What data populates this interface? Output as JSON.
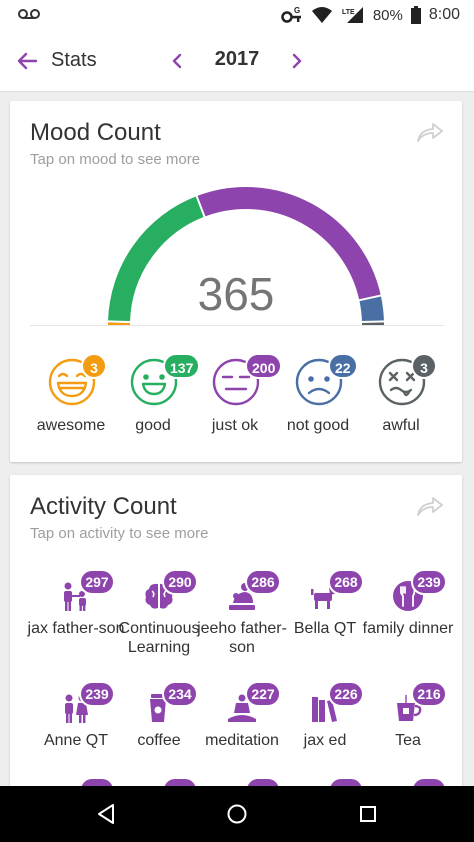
{
  "status_bar": {
    "battery": "80%",
    "time": "8:00",
    "network": "LTE",
    "icons": [
      "voicemail-icon",
      "vpn-key-icon",
      "wifi-icon",
      "signal-icon",
      "battery-icon"
    ]
  },
  "app_bar": {
    "title": "Stats",
    "year": "2017",
    "icons": [
      "arrow-left-icon",
      "chevron-left-icon",
      "chevron-right-icon"
    ]
  },
  "mood_card": {
    "title": "Mood Count",
    "subtitle": "Tap on mood to see more",
    "total": "365",
    "moods": [
      {
        "label": "awesome",
        "count": "3",
        "value": 3,
        "color": "#f39c12"
      },
      {
        "label": "good",
        "count": "137",
        "value": 137,
        "color": "#27ae60"
      },
      {
        "label": "just ok",
        "count": "200",
        "value": 200,
        "color": "#8e44ad"
      },
      {
        "label": "not good",
        "count": "22",
        "value": 22,
        "color": "#4a6fa5"
      },
      {
        "label": "awful",
        "count": "3",
        "value": 3,
        "color": "#5a6266"
      }
    ]
  },
  "activity_card": {
    "title": "Activity Count",
    "subtitle": "Tap on activity to see more",
    "accent": "#8e44ad",
    "activities": [
      {
        "label": "jax father-son",
        "count": "297",
        "icon": "father-son-icon"
      },
      {
        "label": "Continuous Learning",
        "count": "290",
        "icon": "brain-icon"
      },
      {
        "label": "jeeho father-son",
        "count": "286",
        "icon": "parent-child-icon"
      },
      {
        "label": "Bella QT",
        "count": "268",
        "icon": "dog-icon"
      },
      {
        "label": "family dinner",
        "count": "239",
        "icon": "fork-knife-icon"
      },
      {
        "label": "Anne QT",
        "count": "239",
        "icon": "couple-icon"
      },
      {
        "label": "coffee",
        "count": "234",
        "icon": "coffee-icon"
      },
      {
        "label": "meditation",
        "count": "227",
        "icon": "meditation-icon"
      },
      {
        "label": "jax ed",
        "count": "226",
        "icon": "books-icon"
      },
      {
        "label": "Tea",
        "count": "216",
        "icon": "tea-icon"
      }
    ]
  },
  "nav_bar": {
    "icons": [
      "back-triangle-icon",
      "home-circle-icon",
      "recents-square-icon"
    ]
  }
}
